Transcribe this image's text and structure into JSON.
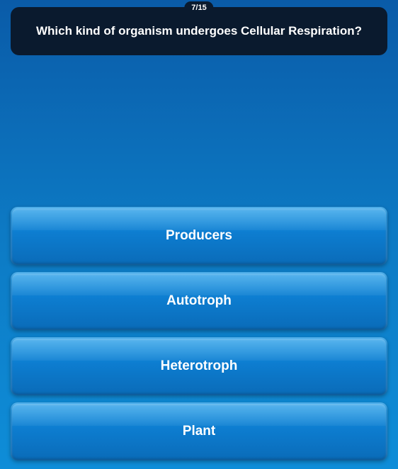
{
  "progress": {
    "current": 7,
    "total": 15,
    "label": "7/15"
  },
  "question": {
    "text": "Which kind of organism undergoes Cellular Respiration?"
  },
  "answers": [
    {
      "label": "Producers"
    },
    {
      "label": "Autotroph"
    },
    {
      "label": "Heterotroph"
    },
    {
      "label": "Plant"
    }
  ],
  "colors": {
    "background_top": "#0a5ba8",
    "background_bottom": "#0e8dd8",
    "question_box": "#0a1a2e",
    "button_top": "#1899e8",
    "button_bottom": "#0a6bb8",
    "text": "#ffffff"
  }
}
